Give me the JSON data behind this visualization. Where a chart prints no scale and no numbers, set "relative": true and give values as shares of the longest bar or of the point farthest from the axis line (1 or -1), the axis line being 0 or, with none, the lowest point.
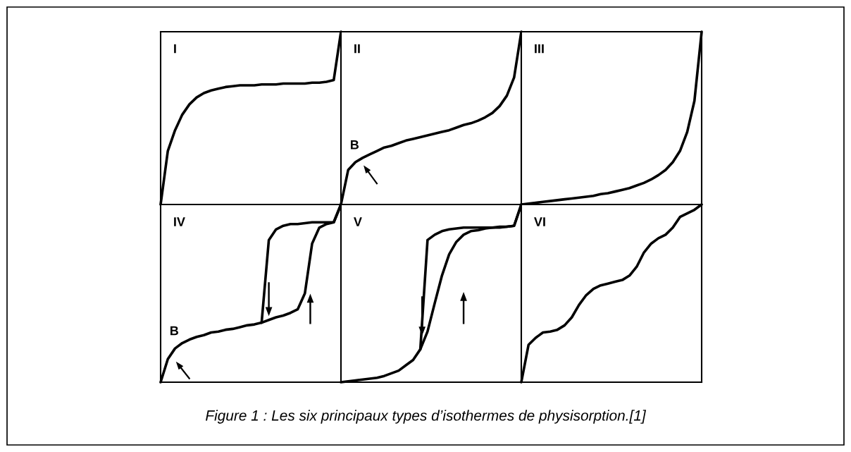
{
  "chart_data": [
    {
      "type": "line",
      "title": "I",
      "relative": true,
      "categories": [
        null,
        null,
        null,
        null,
        null,
        null,
        null,
        null,
        null,
        null,
        null,
        null,
        null,
        null,
        null,
        null,
        null,
        null,
        null,
        null,
        null,
        null,
        null,
        null,
        null,
        null
      ],
      "series": [
        {
          "color": "#000000",
          "values": [
            0,
            0.31,
            0.43,
            0.52,
            0.58,
            0.62,
            0.645,
            0.66,
            0.67,
            0.68,
            0.685,
            0.69,
            0.69,
            0.69,
            0.695,
            0.695,
            0.695,
            0.7,
            0.7,
            0.7,
            0.7,
            0.705,
            0.705,
            0.71,
            0.72,
            1
          ]
        }
      ]
    },
    {
      "type": "line",
      "title": "II",
      "relative": true,
      "annotations": [
        "B"
      ],
      "categories": [
        null,
        null,
        null,
        null,
        null,
        null,
        null,
        null,
        null,
        null,
        null,
        null,
        null,
        null,
        null,
        null,
        null,
        null,
        null,
        null,
        null,
        null,
        null,
        null,
        null,
        null
      ],
      "series": [
        {
          "color": "#000000",
          "values": [
            0,
            0.2,
            0.245,
            0.27,
            0.29,
            0.31,
            0.33,
            0.34,
            0.355,
            0.37,
            0.38,
            0.39,
            0.4,
            0.41,
            0.42,
            0.43,
            0.445,
            0.46,
            0.47,
            0.485,
            0.505,
            0.53,
            0.57,
            0.63,
            0.735,
            1
          ]
        }
      ]
    },
    {
      "type": "line",
      "title": "III",
      "relative": true,
      "categories": [
        null,
        null,
        null,
        null,
        null,
        null,
        null,
        null,
        null,
        null,
        null,
        null,
        null,
        null,
        null,
        null,
        null,
        null,
        null,
        null,
        null,
        null,
        null,
        null,
        null,
        null
      ],
      "series": [
        {
          "color": "#000000",
          "values": [
            0,
            0.005,
            0.01,
            0.015,
            0.02,
            0.025,
            0.03,
            0.035,
            0.04,
            0.045,
            0.05,
            0.06,
            0.065,
            0.075,
            0.085,
            0.095,
            0.11,
            0.125,
            0.145,
            0.17,
            0.2,
            0.245,
            0.31,
            0.42,
            0.6,
            1
          ]
        }
      ]
    },
    {
      "type": "line",
      "title": "IV",
      "relative": true,
      "annotations": [
        "B"
      ],
      "categories": [
        null,
        null,
        null,
        null,
        null,
        null,
        null,
        null,
        null,
        null,
        null,
        null,
        null,
        null,
        null,
        null,
        null,
        null,
        null,
        null,
        null,
        null,
        null,
        null,
        null,
        null
      ],
      "series": [
        {
          "color": "#000000",
          "values": [
            0,
            0.13,
            0.19,
            0.22,
            0.24,
            0.255,
            0.265,
            0.28,
            0.285,
            0.295,
            0.3,
            0.31,
            0.32,
            0.325,
            0.335,
            0.35,
            0.365,
            0.375,
            0.39,
            0.41,
            0.5,
            0.78,
            0.87,
            0.89,
            0.9,
            1
          ]
        },
        {
          "color": "#000000",
          "values": [
            null,
            null,
            null,
            null,
            null,
            null,
            null,
            null,
            null,
            null,
            null,
            null,
            null,
            null,
            0.335,
            0.8,
            0.86,
            0.88,
            0.89,
            0.89,
            0.895,
            0.9,
            0.9,
            0.9,
            0.9,
            1
          ]
        }
      ]
    },
    {
      "type": "line",
      "title": "V",
      "relative": true,
      "categories": [
        null,
        null,
        null,
        null,
        null,
        null,
        null,
        null,
        null,
        null,
        null,
        null,
        null,
        null,
        null,
        null,
        null,
        null,
        null,
        null,
        null,
        null,
        null,
        null,
        null,
        null
      ],
      "series": [
        {
          "color": "#000000",
          "values": [
            0,
            0.005,
            0.01,
            0.015,
            0.02,
            0.025,
            0.035,
            0.05,
            0.065,
            0.095,
            0.125,
            0.185,
            0.285,
            0.445,
            0.6,
            0.72,
            0.79,
            0.83,
            0.85,
            0.855,
            0.865,
            0.87,
            0.87,
            0.875,
            0.88,
            1
          ]
        },
        {
          "color": "#000000",
          "values": [
            null,
            null,
            null,
            null,
            null,
            null,
            null,
            null,
            null,
            null,
            null,
            0.185,
            0.8,
            0.83,
            0.85,
            0.86,
            0.865,
            0.87,
            0.87,
            0.87,
            0.87,
            0.87,
            0.875,
            0.875,
            0.88,
            1
          ]
        }
      ]
    },
    {
      "type": "line",
      "title": "VI",
      "relative": true,
      "annotations": [
        "Figure 1 : Les six principaux types d’isothermes de physisorption.[1]"
      ],
      "categories": [
        null,
        null,
        null,
        null,
        null,
        null,
        null,
        null,
        null,
        null,
        null,
        null,
        null,
        null,
        null,
        null,
        null,
        null,
        null,
        null,
        null,
        null,
        null,
        null,
        null,
        null
      ],
      "series": [
        {
          "color": "#000000",
          "values": [
            0,
            0.21,
            0.25,
            0.28,
            0.285,
            0.295,
            0.32,
            0.365,
            0.435,
            0.49,
            0.525,
            0.545,
            0.555,
            0.565,
            0.575,
            0.6,
            0.65,
            0.73,
            0.78,
            0.81,
            0.83,
            0.87,
            0.93,
            0.95,
            0.97,
            1
          ]
        }
      ]
    }
  ]
}
